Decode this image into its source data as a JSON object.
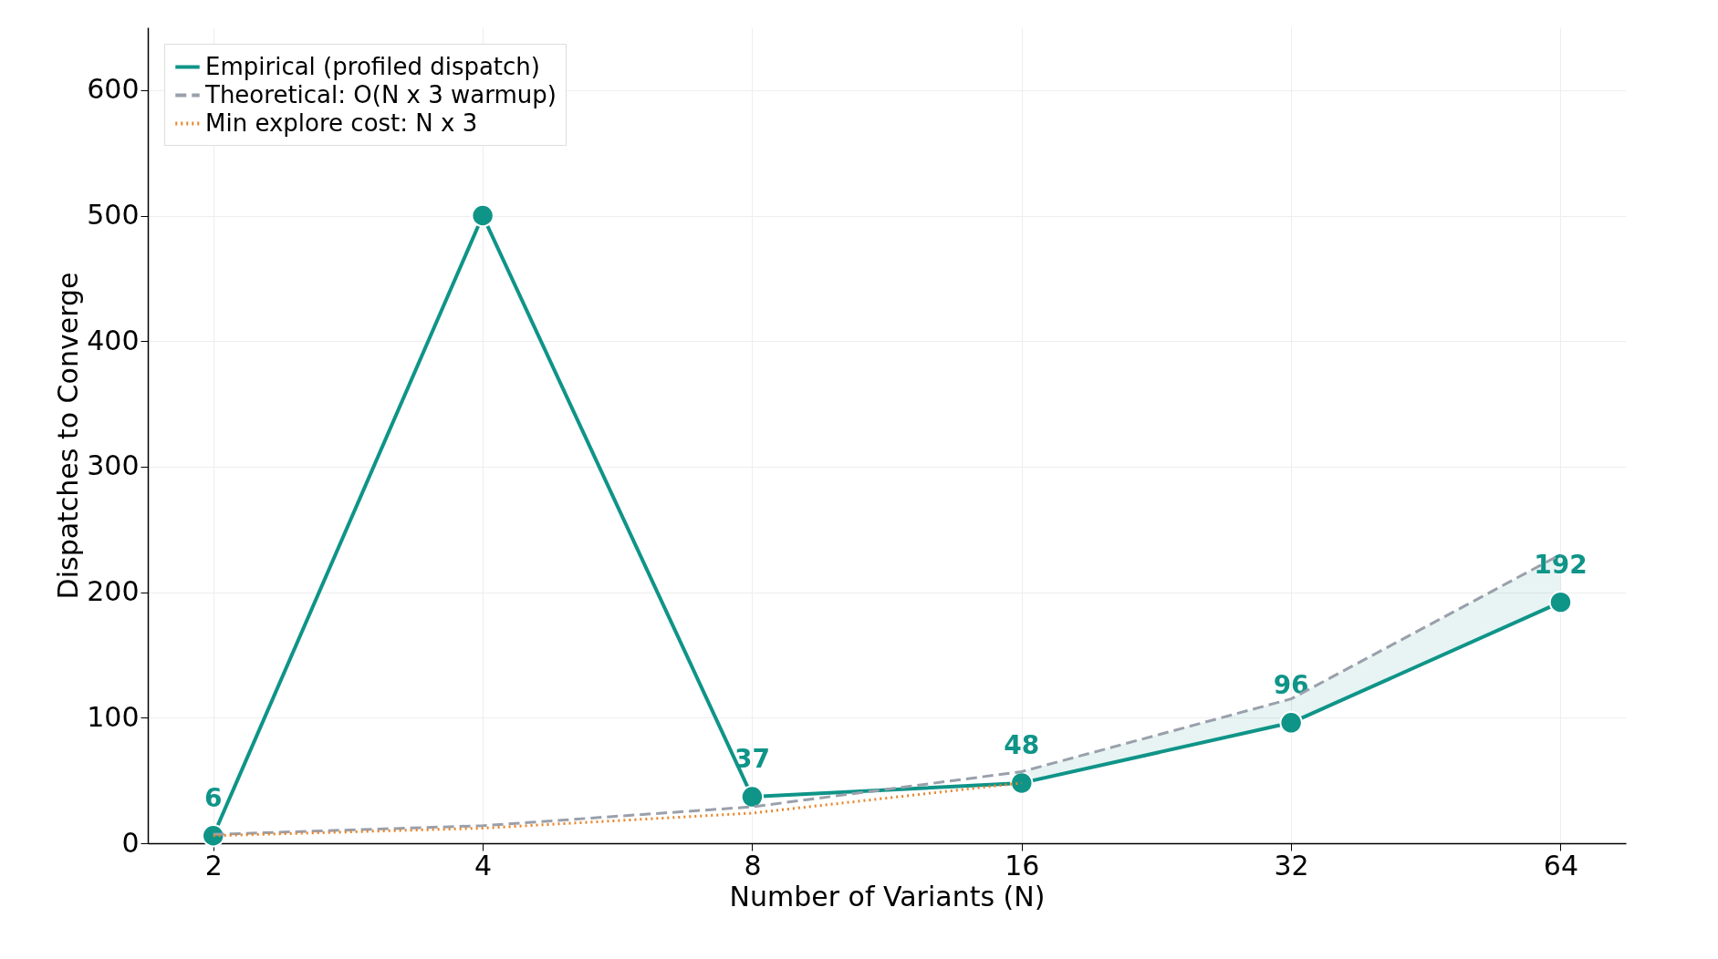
{
  "chart_data": {
    "type": "line",
    "xlabel": "Number of Variants (N)",
    "ylabel": "Dispatches to Converge",
    "log": "x",
    "x": [
      2,
      4,
      8,
      16,
      32,
      64
    ],
    "xlim": [
      1.69,
      75.7
    ],
    "xticks": [
      2,
      4,
      8,
      16,
      32,
      64
    ],
    "ylim": [
      0,
      650
    ],
    "yticks": [
      0,
      100,
      200,
      300,
      400,
      500,
      600
    ],
    "grid": true,
    "legend": "top left",
    "series": [
      {
        "name": "Empirical (profiled dispatch)",
        "color": "#0f9488",
        "values": [
          6,
          500,
          37,
          48,
          96,
          192
        ],
        "marker": "circle",
        "line_style": "solid",
        "value_labels": [
          "6",
          null,
          "37",
          "48",
          "96",
          "192"
        ],
        "lower": [
          null,
          null,
          null,
          48,
          96,
          192
        ],
        "upper": [
          null,
          null,
          null,
          57,
          115,
          230
        ]
      },
      {
        "name": "Theoretical: O(N x 3 warmup)",
        "color": "#9aa0ab",
        "values": [
          7,
          14,
          29,
          57,
          115,
          230
        ],
        "marker": "none",
        "line_style": "dashed"
      },
      {
        "name": "Min explore cost: N x 3",
        "color": "#e8862a",
        "x": [
          2,
          4,
          8,
          16
        ],
        "values": [
          6,
          12,
          24,
          48
        ],
        "marker": "none",
        "line_style": "dotted"
      }
    ]
  }
}
